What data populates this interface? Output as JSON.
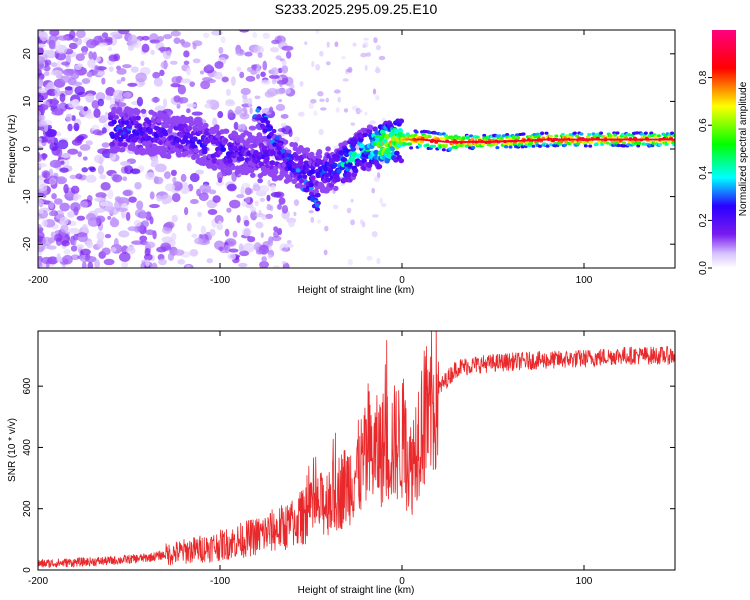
{
  "title": "S233.2025.295.09.25.E10",
  "colors": {
    "snr_line": "#e8282a",
    "colormap": [
      "#ffffff",
      "#d8c2ff",
      "#7a1cf0",
      "#2a00ff",
      "#00ffff",
      "#00ff00",
      "#ffff00",
      "#ff0000",
      "#ff0080"
    ]
  },
  "chart_data": [
    {
      "type": "heatmap",
      "xlabel": "Height of straight line (km)",
      "ylabel": "Frequency (Hz)",
      "xlim": [
        -200,
        150
      ],
      "ylim": [
        -25,
        25
      ],
      "xticks": [
        -200,
        -100,
        0,
        100
      ],
      "xtick_labels": [
        "-200",
        "-100",
        "0",
        "100"
      ],
      "yticks": [
        -20,
        -10,
        0,
        10,
        20
      ],
      "ytick_labels": [
        "-20",
        "-10",
        "0",
        "10",
        "20"
      ],
      "ridge": [
        {
          "x": -150,
          "f": 4,
          "a": 0.35
        },
        {
          "x": -130,
          "f": 3,
          "a": 0.25
        },
        {
          "x": -115,
          "f": 2,
          "a": 0.3
        },
        {
          "x": -100,
          "f": 0,
          "a": 0.3
        },
        {
          "x": -85,
          "f": -1,
          "a": 0.25
        },
        {
          "x": -65,
          "f": -2,
          "a": 0.25
        },
        {
          "x": -48,
          "f": -5,
          "a": 0.3
        },
        {
          "x": -35,
          "f": -4,
          "a": 0.4
        },
        {
          "x": -28,
          "f": -2,
          "a": 0.6
        },
        {
          "x": -20,
          "f": 0,
          "a": 0.5
        },
        {
          "x": -10,
          "f": 1,
          "a": 0.9
        },
        {
          "x": 0,
          "f": 2,
          "a": 0.8
        },
        {
          "x": 10,
          "f": 2,
          "a": 0.95
        },
        {
          "x": 25,
          "f": 1.5,
          "a": 1.0
        },
        {
          "x": 50,
          "f": 1.5,
          "a": 1.0
        },
        {
          "x": 80,
          "f": 2,
          "a": 1.0
        },
        {
          "x": 110,
          "f": 2,
          "a": 1.0
        },
        {
          "x": 150,
          "f": 2,
          "a": 1.0
        }
      ],
      "colorbar": {
        "label": "Normalized spectral amplitude",
        "range": [
          0,
          1
        ],
        "ticks": [
          0.0,
          0.2,
          0.4,
          0.6,
          0.8
        ],
        "tick_labels": [
          "0.0",
          "0.2",
          "0.4",
          "0.6",
          "0.8"
        ]
      }
    },
    {
      "type": "line",
      "xlabel": "Height of straight line (km)",
      "ylabel": "SNR (10 * v/v)",
      "xlim": [
        -200,
        150
      ],
      "ylim": [
        0,
        780
      ],
      "xticks": [
        -200,
        -100,
        0,
        100
      ],
      "xtick_labels": [
        "-200",
        "-100",
        "0",
        "100"
      ],
      "yticks": [
        0,
        200,
        400,
        600
      ],
      "ytick_labels": [
        "0",
        "200",
        "400",
        "600"
      ],
      "series": [
        {
          "name": "SNR",
          "x": [
            -200,
            -180,
            -160,
            -140,
            -120,
            -100,
            -80,
            -60,
            -40,
            -30,
            -20,
            -10,
            0,
            5,
            10,
            15,
            20,
            30,
            40,
            60,
            80,
            100,
            120,
            150
          ],
          "y": [
            20,
            25,
            30,
            40,
            60,
            80,
            110,
            150,
            230,
            280,
            360,
            400,
            420,
            330,
            480,
            520,
            590,
            660,
            670,
            680,
            685,
            690,
            700,
            700
          ]
        }
      ]
    }
  ]
}
